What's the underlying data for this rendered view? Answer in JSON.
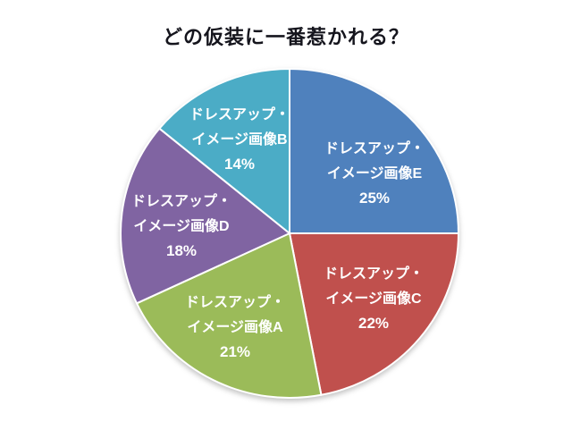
{
  "chart_data": {
    "type": "pie",
    "title": "どの仮装に一番惹かれる？",
    "direction": "clockwise",
    "start_angle_deg": 0,
    "legend": "none",
    "data_labels": "category name and percentage inside slices",
    "title_color": "#15151d",
    "label_text_color": "#FFFFFF",
    "slice_border_color": "#FFFFFF",
    "background_color": "#FFFFFF",
    "slices": [
      {
        "label": "ドレスアップ・イメージ画像E",
        "label_lines": [
          "ドレスアップ・",
          "イメージ画像E"
        ],
        "value_pct": 25,
        "pct_text": "25%",
        "color": "#4F81BD",
        "key": "E"
      },
      {
        "label": "ドレスアップ・イメージ画像C",
        "label_lines": [
          "ドレスアップ・",
          "イメージ画像C"
        ],
        "value_pct": 22,
        "pct_text": "22%",
        "color": "#C0504D",
        "key": "C"
      },
      {
        "label": "ドレスアップ・イメージ画像A",
        "label_lines": [
          "ドレスアップ・",
          "イメージ画像A"
        ],
        "value_pct": 21,
        "pct_text": "21%",
        "color": "#9BBB59",
        "key": "A"
      },
      {
        "label": "ドレスアップ・イメージ画像D",
        "label_lines": [
          "ドレスアップ・",
          "イメージ画像D"
        ],
        "value_pct": 18,
        "pct_text": "18%",
        "color": "#8064A2",
        "key": "D"
      },
      {
        "label": "ドレスアップ・イメージ画像B",
        "label_lines": [
          "ドレスアップ・",
          "イメージ画像B"
        ],
        "value_pct": 14,
        "pct_text": "14%",
        "color": "#4BACC6",
        "key": "B"
      }
    ]
  }
}
